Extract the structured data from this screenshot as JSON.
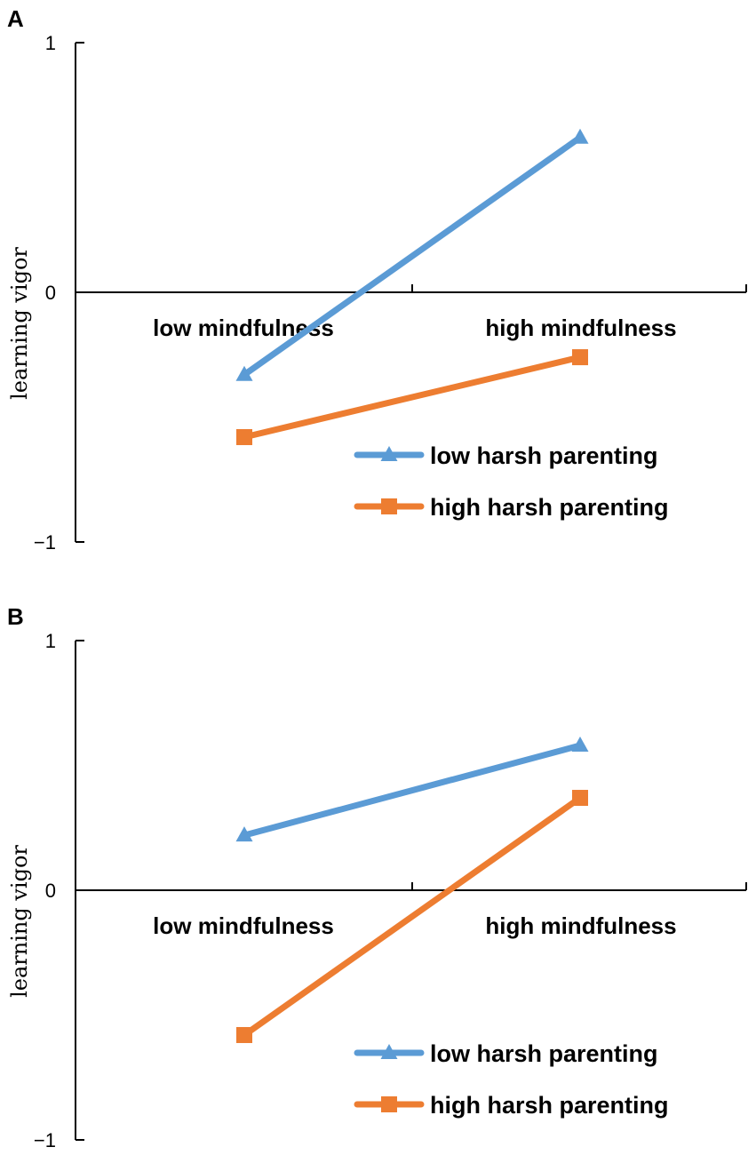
{
  "chart_data": [
    {
      "panel": "A",
      "type": "line",
      "ylabel": "learning vigor",
      "xlabel": "",
      "ylim": [
        -1,
        1
      ],
      "yticks": [
        {
          "value": 1,
          "label": "1"
        },
        {
          "value": 0,
          "label": "0"
        },
        {
          "value": -1,
          "label": "−1"
        }
      ],
      "categories": [
        "low mindfulness",
        "high mindfulness"
      ],
      "series": [
        {
          "name": "low harsh parenting",
          "color": "#5B9BD5",
          "marker": "triangle",
          "values": [
            -0.33,
            0.62
          ]
        },
        {
          "name": "high harsh parenting",
          "color": "#ED7D31",
          "marker": "square",
          "values": [
            -0.58,
            -0.26
          ]
        }
      ]
    },
    {
      "panel": "B",
      "type": "line",
      "ylabel": "learning vigor",
      "xlabel": "",
      "ylim": [
        -1,
        1
      ],
      "yticks": [
        {
          "value": 1,
          "label": "1"
        },
        {
          "value": 0,
          "label": "0"
        },
        {
          "value": -1,
          "label": "−1"
        }
      ],
      "categories": [
        "low mindfulness",
        "high mindfulness"
      ],
      "series": [
        {
          "name": "low harsh parenting",
          "color": "#5B9BD5",
          "marker": "triangle",
          "values": [
            0.22,
            0.58
          ]
        },
        {
          "name": "high harsh parenting",
          "color": "#ED7D31",
          "marker": "square",
          "values": [
            -0.58,
            0.37
          ]
        }
      ]
    }
  ]
}
